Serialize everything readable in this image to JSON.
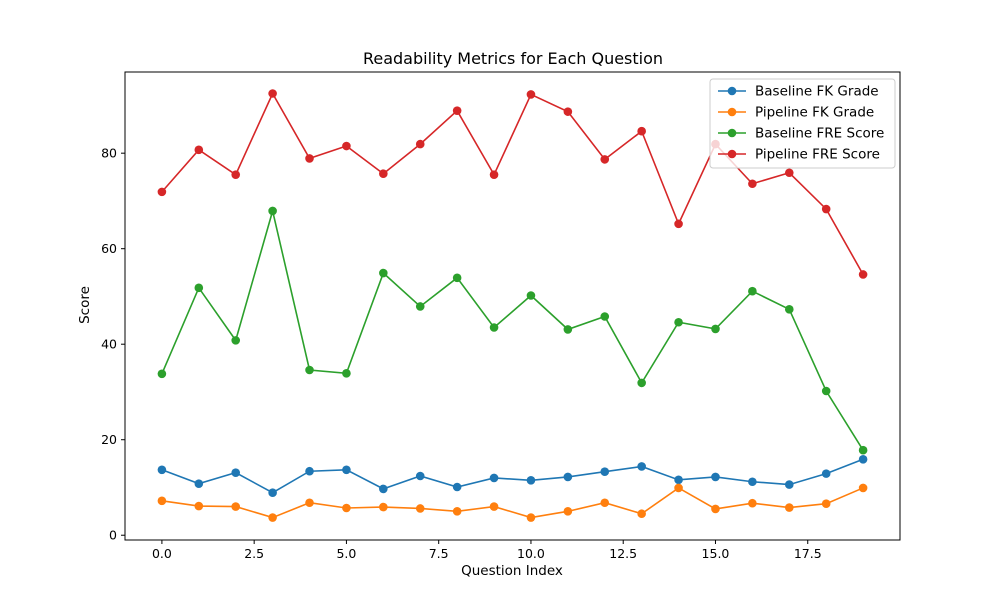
{
  "chart_data": {
    "type": "line",
    "title": "Readability Metrics for Each Question",
    "xlabel": "Question Index",
    "ylabel": "Score",
    "xlim": [
      -1,
      20
    ],
    "ylim": [
      -1,
      97
    ],
    "xticks": [
      0,
      2.5,
      5,
      7.5,
      10,
      12.5,
      15,
      17.5
    ],
    "xtick_labels": [
      "0.0",
      "2.5",
      "5.0",
      "7.5",
      "10.0",
      "12.5",
      "15.0",
      "17.5"
    ],
    "yticks": [
      0,
      20,
      40,
      60,
      80
    ],
    "ytick_labels": [
      "0",
      "20",
      "40",
      "60",
      "80"
    ],
    "grid": false,
    "legend_position": "top-right",
    "x": [
      0,
      1,
      2,
      3,
      4,
      5,
      6,
      7,
      8,
      9,
      10,
      11,
      12,
      13,
      14,
      15,
      16,
      17,
      18,
      19
    ],
    "series": [
      {
        "name": "Baseline FK Grade",
        "color": "#1f77b4",
        "values": [
          13.7,
          10.8,
          13.1,
          8.9,
          13.4,
          13.7,
          9.7,
          12.4,
          10.1,
          12.0,
          11.5,
          12.2,
          13.3,
          14.4,
          11.6,
          12.2,
          11.2,
          10.6,
          12.9,
          15.9
        ]
      },
      {
        "name": "Pipeline FK Grade",
        "color": "#ff7f0e",
        "values": [
          7.2,
          6.1,
          6.0,
          3.7,
          6.8,
          5.7,
          5.9,
          5.6,
          5.0,
          6.0,
          3.7,
          5.0,
          6.8,
          4.5,
          9.9,
          5.5,
          6.7,
          5.8,
          6.6,
          9.9
        ]
      },
      {
        "name": "Baseline FRE Score",
        "color": "#2ca02c",
        "values": [
          33.8,
          51.8,
          40.8,
          67.9,
          34.6,
          33.9,
          54.9,
          47.9,
          53.9,
          43.5,
          50.2,
          43.1,
          45.8,
          31.9,
          44.6,
          43.2,
          51.1,
          47.3,
          30.2,
          17.8
        ]
      },
      {
        "name": "Pipeline FRE Score",
        "color": "#d62728",
        "values": [
          71.9,
          80.7,
          75.5,
          92.5,
          78.9,
          81.5,
          75.7,
          81.9,
          88.9,
          75.5,
          92.3,
          88.7,
          78.7,
          84.6,
          65.2,
          81.9,
          73.6,
          75.9,
          68.3,
          54.6
        ]
      }
    ]
  }
}
